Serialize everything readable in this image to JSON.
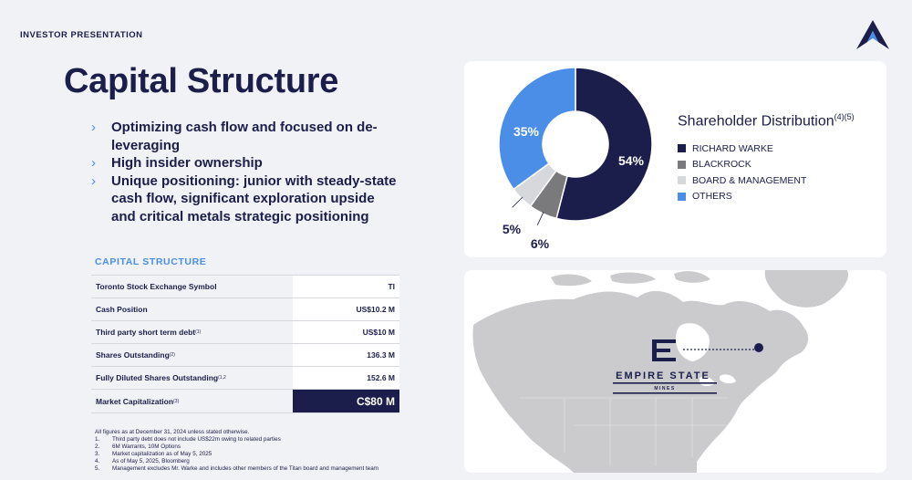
{
  "header": {
    "label": "INVESTOR PRESENTATION"
  },
  "title": "Capital Structure",
  "bullets": [
    {
      "icon": "chevron-right-icon",
      "text": "Optimizing cash flow and focused on de-leveraging"
    },
    {
      "icon": "chevron-right-icon",
      "text": "High insider ownership"
    },
    {
      "icon": "chevron-right-icon",
      "text": "Unique positioning: junior with steady-state cash flow, significant exploration upside and critical metals strategic positioning"
    }
  ],
  "capital_table": {
    "heading": "CAPITAL STRUCTURE",
    "rows": [
      {
        "label": "Toronto Stock Exchange Symbol",
        "note": "",
        "value": "TI"
      },
      {
        "label": "Cash Position",
        "note": "",
        "value": "US$10.2 M"
      },
      {
        "label": "Third party short term debt",
        "note": "(1)",
        "value": "US$10 M"
      },
      {
        "label": "Shares Outstanding",
        "note": "(2)",
        "value": "136.3 M"
      },
      {
        "label": "Fully Diluted Shares Outstanding",
        "note": "(1,2",
        "value": "152.6 M"
      },
      {
        "label": "Market Capitalization",
        "note": "(3)",
        "value": "C$80 M"
      }
    ]
  },
  "footnotes": {
    "intro": "All figures as at December 31, 2024 unless stated otherwise.",
    "items": [
      {
        "num": "1.",
        "text": "Third party debt does not include US$22m owing to related parties"
      },
      {
        "num": "2.",
        "text": "6M Warrants, 10M Options"
      },
      {
        "num": "3.",
        "text": "Market capitalization as of  May 5, 2025"
      },
      {
        "num": "4.",
        "text": "As of May 5, 2025, Bloomberg"
      },
      {
        "num": "5.",
        "text": "Management excludes Mr. Warke and includes other members of the Titan board and management team"
      }
    ]
  },
  "chart_data": {
    "type": "pie",
    "title": "Shareholder Distribution",
    "title_notes": "(4)(5)",
    "legend_placement": "right",
    "slices": [
      {
        "name": "RICHARD WARKE",
        "value": 54,
        "label": "54%",
        "color": "#1b1e4b"
      },
      {
        "name": "BLACKROCK",
        "value": 6,
        "label": "6%",
        "color": "#7a7a7c"
      },
      {
        "name": "BOARD & MANAGEMENT",
        "value": 5,
        "label": "5%",
        "color": "#d7d8dc"
      },
      {
        "name": "OTHERS",
        "value": 35,
        "label": "35%",
        "color": "#4a8ee8"
      }
    ]
  },
  "map": {
    "brand_line1": "EMPIRE STATE",
    "brand_line2": "MINES",
    "land_color": "#cbcbcd",
    "brand_color": "#1b1e4b"
  },
  "colors": {
    "navy": "#1b1e4b",
    "accent": "#4a8ee8"
  }
}
